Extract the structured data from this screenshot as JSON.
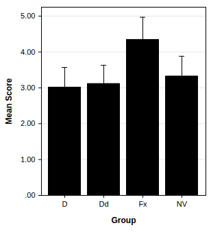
{
  "chart_data": {
    "type": "bar",
    "categories": [
      "D",
      "Dd",
      "Fx",
      "NV"
    ],
    "values": [
      3.02,
      3.12,
      4.35,
      3.33
    ],
    "errors": [
      0.55,
      0.51,
      0.62,
      0.55
    ],
    "color": "#000000",
    "x_label": "Group",
    "y_label": "Mean Score",
    "ylim": [
      0,
      5.25
    ],
    "yticks": [
      {
        "value": 0,
        "label": ".00"
      },
      {
        "value": 1,
        "label": "1.00"
      },
      {
        "value": 2,
        "label": "2.00"
      },
      {
        "value": 3,
        "label": "3.00"
      },
      {
        "value": 4,
        "label": "4.00"
      },
      {
        "value": 5,
        "label": "5.00"
      }
    ],
    "grid": true
  }
}
